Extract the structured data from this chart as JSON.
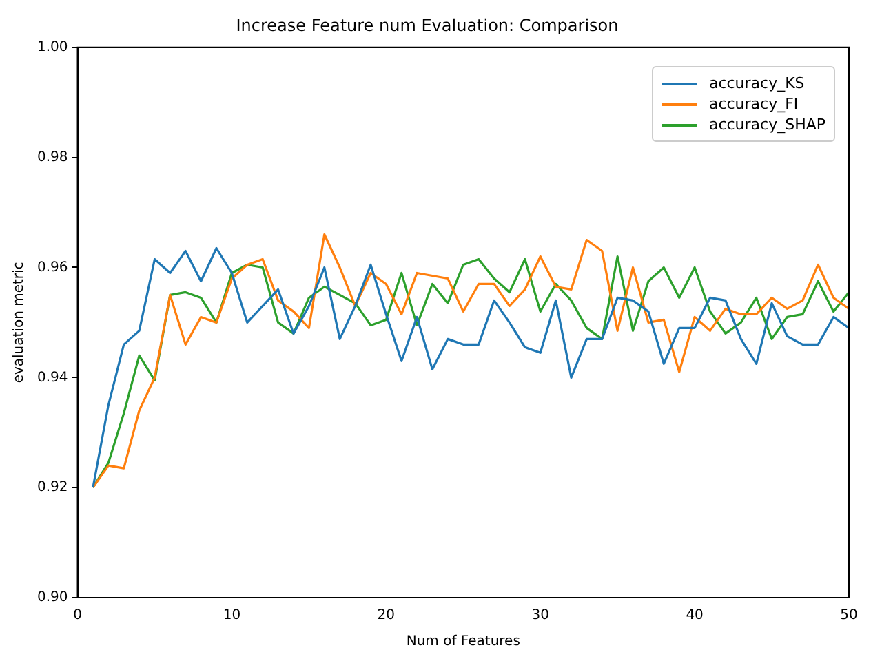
{
  "chart_data": {
    "type": "line",
    "title": "Increase Feature num Evaluation: Comparison",
    "xlabel": "Num of Features",
    "ylabel": "evaluation metric",
    "x": [
      1,
      2,
      3,
      4,
      5,
      6,
      7,
      8,
      9,
      10,
      11,
      12,
      13,
      14,
      15,
      16,
      17,
      18,
      19,
      20,
      21,
      22,
      23,
      24,
      25,
      26,
      27,
      28,
      29,
      30,
      31,
      32,
      33,
      34,
      35,
      36,
      37,
      38,
      39,
      40,
      41,
      42,
      43,
      44,
      45,
      46,
      47,
      48,
      49,
      50
    ],
    "series": [
      {
        "name": "accuracy_KS",
        "color": "#1f77b4",
        "values": [
          0.92,
          0.935,
          0.946,
          0.9485,
          0.9615,
          0.959,
          0.963,
          0.9575,
          0.9635,
          0.959,
          0.95,
          0.953,
          0.956,
          0.948,
          0.953,
          0.96,
          0.947,
          0.953,
          0.9605,
          0.9515,
          0.943,
          0.951,
          0.9415,
          0.947,
          0.946,
          0.946,
          0.954,
          0.95,
          0.9455,
          0.9445,
          0.954,
          0.94,
          0.947,
          0.947,
          0.9545,
          0.954,
          0.952,
          0.9425,
          0.949,
          0.949,
          0.9545,
          0.954,
          0.947,
          0.9425,
          0.9535,
          0.9475,
          0.946,
          0.946,
          0.951,
          0.949
        ]
      },
      {
        "name": "accuracy_FI",
        "color": "#ff7f0e",
        "values": [
          0.92,
          0.924,
          0.9235,
          0.934,
          0.94,
          0.955,
          0.946,
          0.951,
          0.95,
          0.958,
          0.9605,
          0.9615,
          0.954,
          0.952,
          0.949,
          0.966,
          0.96,
          0.953,
          0.959,
          0.957,
          0.9515,
          0.959,
          0.9585,
          0.958,
          0.952,
          0.957,
          0.957,
          0.953,
          0.956,
          0.962,
          0.9565,
          0.956,
          0.965,
          0.963,
          0.9485,
          0.96,
          0.95,
          0.9505,
          0.941,
          0.951,
          0.9485,
          0.9525,
          0.9515,
          0.9515,
          0.9545,
          0.9525,
          0.954,
          0.9605,
          0.9545,
          0.9525
        ]
      },
      {
        "name": "accuracy_SHAP",
        "color": "#2ca02c",
        "values": [
          0.92,
          0.9245,
          0.9335,
          0.944,
          0.9395,
          0.955,
          0.9555,
          0.9545,
          0.95,
          0.959,
          0.9605,
          0.96,
          0.95,
          0.948,
          0.9545,
          0.9565,
          0.955,
          0.9535,
          0.9495,
          0.9505,
          0.959,
          0.9495,
          0.957,
          0.9535,
          0.9605,
          0.9615,
          0.958,
          0.9555,
          0.9615,
          0.952,
          0.957,
          0.954,
          0.949,
          0.947,
          0.962,
          0.9485,
          0.9575,
          0.96,
          0.9545,
          0.96,
          0.952,
          0.948,
          0.95,
          0.9545,
          0.947,
          0.951,
          0.9515,
          0.9575,
          0.952,
          0.9555
        ]
      }
    ],
    "xlim": [
      0,
      50
    ],
    "xticks": [
      0,
      10,
      20,
      30,
      40,
      50
    ],
    "ylim": [
      0.9,
      1.0
    ],
    "yticks": [
      {
        "value": 0.9,
        "label": "0.90"
      },
      {
        "value": 0.92,
        "label": "0.92"
      },
      {
        "value": 0.94,
        "label": "0.94"
      },
      {
        "value": 0.96,
        "label": "0.96"
      },
      {
        "value": 0.98,
        "label": "0.98"
      },
      {
        "value": 1.0,
        "label": "1.00"
      }
    ],
    "legend": "top right",
    "grid": false
  }
}
